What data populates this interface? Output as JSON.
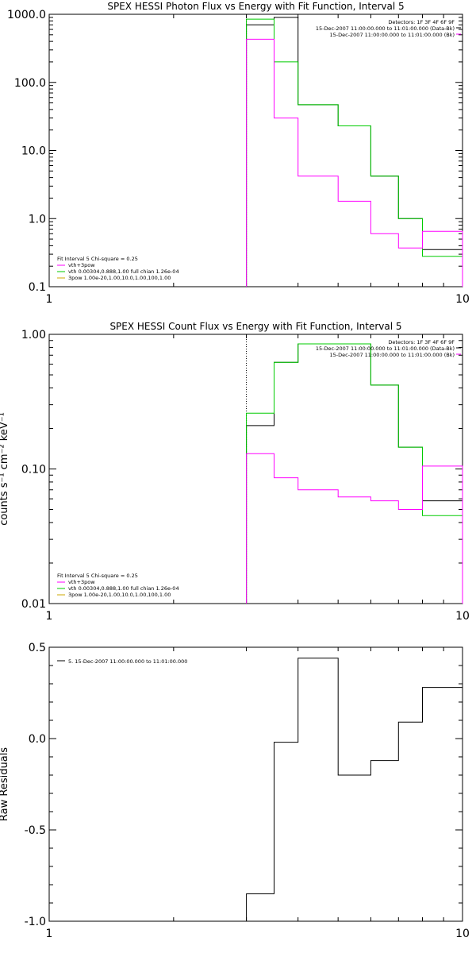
{
  "chart_data": [
    {
      "type": "line",
      "title": "SPEX HESSI Photon Flux vs Energy with Fit Function, Interval 5",
      "xlabel": "",
      "ylabel": "",
      "xscale": "log",
      "yscale": "log",
      "xlim": [
        1,
        10
      ],
      "ylim": [
        0.1,
        1000
      ],
      "x_ticks": [
        "1",
        "10"
      ],
      "y_ticks": [
        "0.1",
        "1.0",
        "10.0",
        "100.0",
        "1000.0"
      ],
      "edges": [
        3,
        3.5,
        4,
        5,
        6,
        7,
        8,
        9,
        10
      ],
      "series": [
        {
          "name": "",
          "color": "#000000",
          "values": [
            700,
            900,
            47,
            23,
            4.2,
            1.0,
            0.35,
            0.35
          ]
        },
        {
          "name": "",
          "color": "#00cc00",
          "values": [
            850,
            200,
            47,
            23,
            4.2,
            1.0,
            0.28,
            0.28
          ]
        },
        {
          "name": "",
          "color": "#ff00ff",
          "values": [
            430,
            30,
            4.2,
            1.8,
            0.6,
            0.37,
            0.65,
            0.65
          ]
        }
      ],
      "dotted_x": 3,
      "header_right": [
        "Detectors: 1F 3F 4F 6F 9F",
        "15-Dec-2007 11:00:00.000 to 11:01:00.000 (Data-Bk)",
        "15-Dec-2007 11:00:00.000 to 11:01:00.000 (Bk)"
      ],
      "legend_left": [
        "Fit Interval 5   Chi-square = 0.25",
        "vth+3pow",
        "vth 0.00304,0.888,1.00  full chian 1.26e-04",
        "3pow 1.00e-20,1.00,10.0,1.00,100,1.00"
      ]
    },
    {
      "type": "line",
      "title": "SPEX HESSI Count Flux vs Energy with Fit Function, Interval 5",
      "xlabel": "",
      "ylabel": "counts s⁻¹ cm⁻² keV⁻¹",
      "xscale": "log",
      "yscale": "log",
      "xlim": [
        1,
        10
      ],
      "ylim": [
        0.01,
        1
      ],
      "x_ticks": [
        "1",
        "10"
      ],
      "y_ticks": [
        "0.01",
        "0.10",
        "1.00"
      ],
      "edges": [
        3,
        3.5,
        4,
        5,
        6,
        7,
        8,
        9,
        10
      ],
      "series": [
        {
          "name": "",
          "color": "#000000",
          "values": [
            0.21,
            0.62,
            0.85,
            0.85,
            0.42,
            0.145,
            0.058,
            0.058
          ]
        },
        {
          "name": "",
          "color": "#00cc00",
          "values": [
            0.26,
            0.62,
            0.85,
            0.85,
            0.42,
            0.145,
            0.045,
            0.045
          ]
        },
        {
          "name": "",
          "color": "#ff00ff",
          "values": [
            0.13,
            0.086,
            0.07,
            0.062,
            0.058,
            0.05,
            0.105,
            0.105
          ]
        }
      ],
      "dotted_x": 3,
      "header_right": [
        "Detectors: 1F 3F 4F 6F 9F",
        "15-Dec-2007 11:00:00.000 to 11:01:00.000 (Data-Bk)",
        "15-Dec-2007 11:00:00.000 to 11:01:00.000 (Bk)"
      ],
      "legend_left": [
        "Fit Interval 5   Chi-square = 0.25",
        "vth+3pow",
        "vth 0.00304,0.888,1.00  full chian 1.26e-04",
        "3pow 1.00e-20,1.00,10.0,1.00,100,1.00"
      ]
    },
    {
      "type": "line",
      "title": "",
      "xlabel": "",
      "ylabel": "Raw Residuals",
      "xscale": "log",
      "yscale": "linear",
      "xlim": [
        1,
        10
      ],
      "ylim": [
        -1.0,
        0.5
      ],
      "x_ticks": [
        "1",
        "10"
      ],
      "y_ticks": [
        "-1.0",
        "-0.5",
        "0.0",
        "0.5"
      ],
      "edges": [
        3,
        3.5,
        4,
        5,
        6,
        7,
        8,
        9,
        10
      ],
      "series": [
        {
          "name": "5. 15-Dec-2007 11:00:00.000 to 11:01:00.000",
          "color": "#000000",
          "values": [
            -0.85,
            -0.02,
            0.44,
            -0.2,
            -0.12,
            0.09,
            0.28,
            0.28
          ]
        }
      ]
    }
  ],
  "colors": {
    "data": "#000000",
    "fit": "#00cc00",
    "background": "#ff00ff",
    "axes": "#000000"
  }
}
